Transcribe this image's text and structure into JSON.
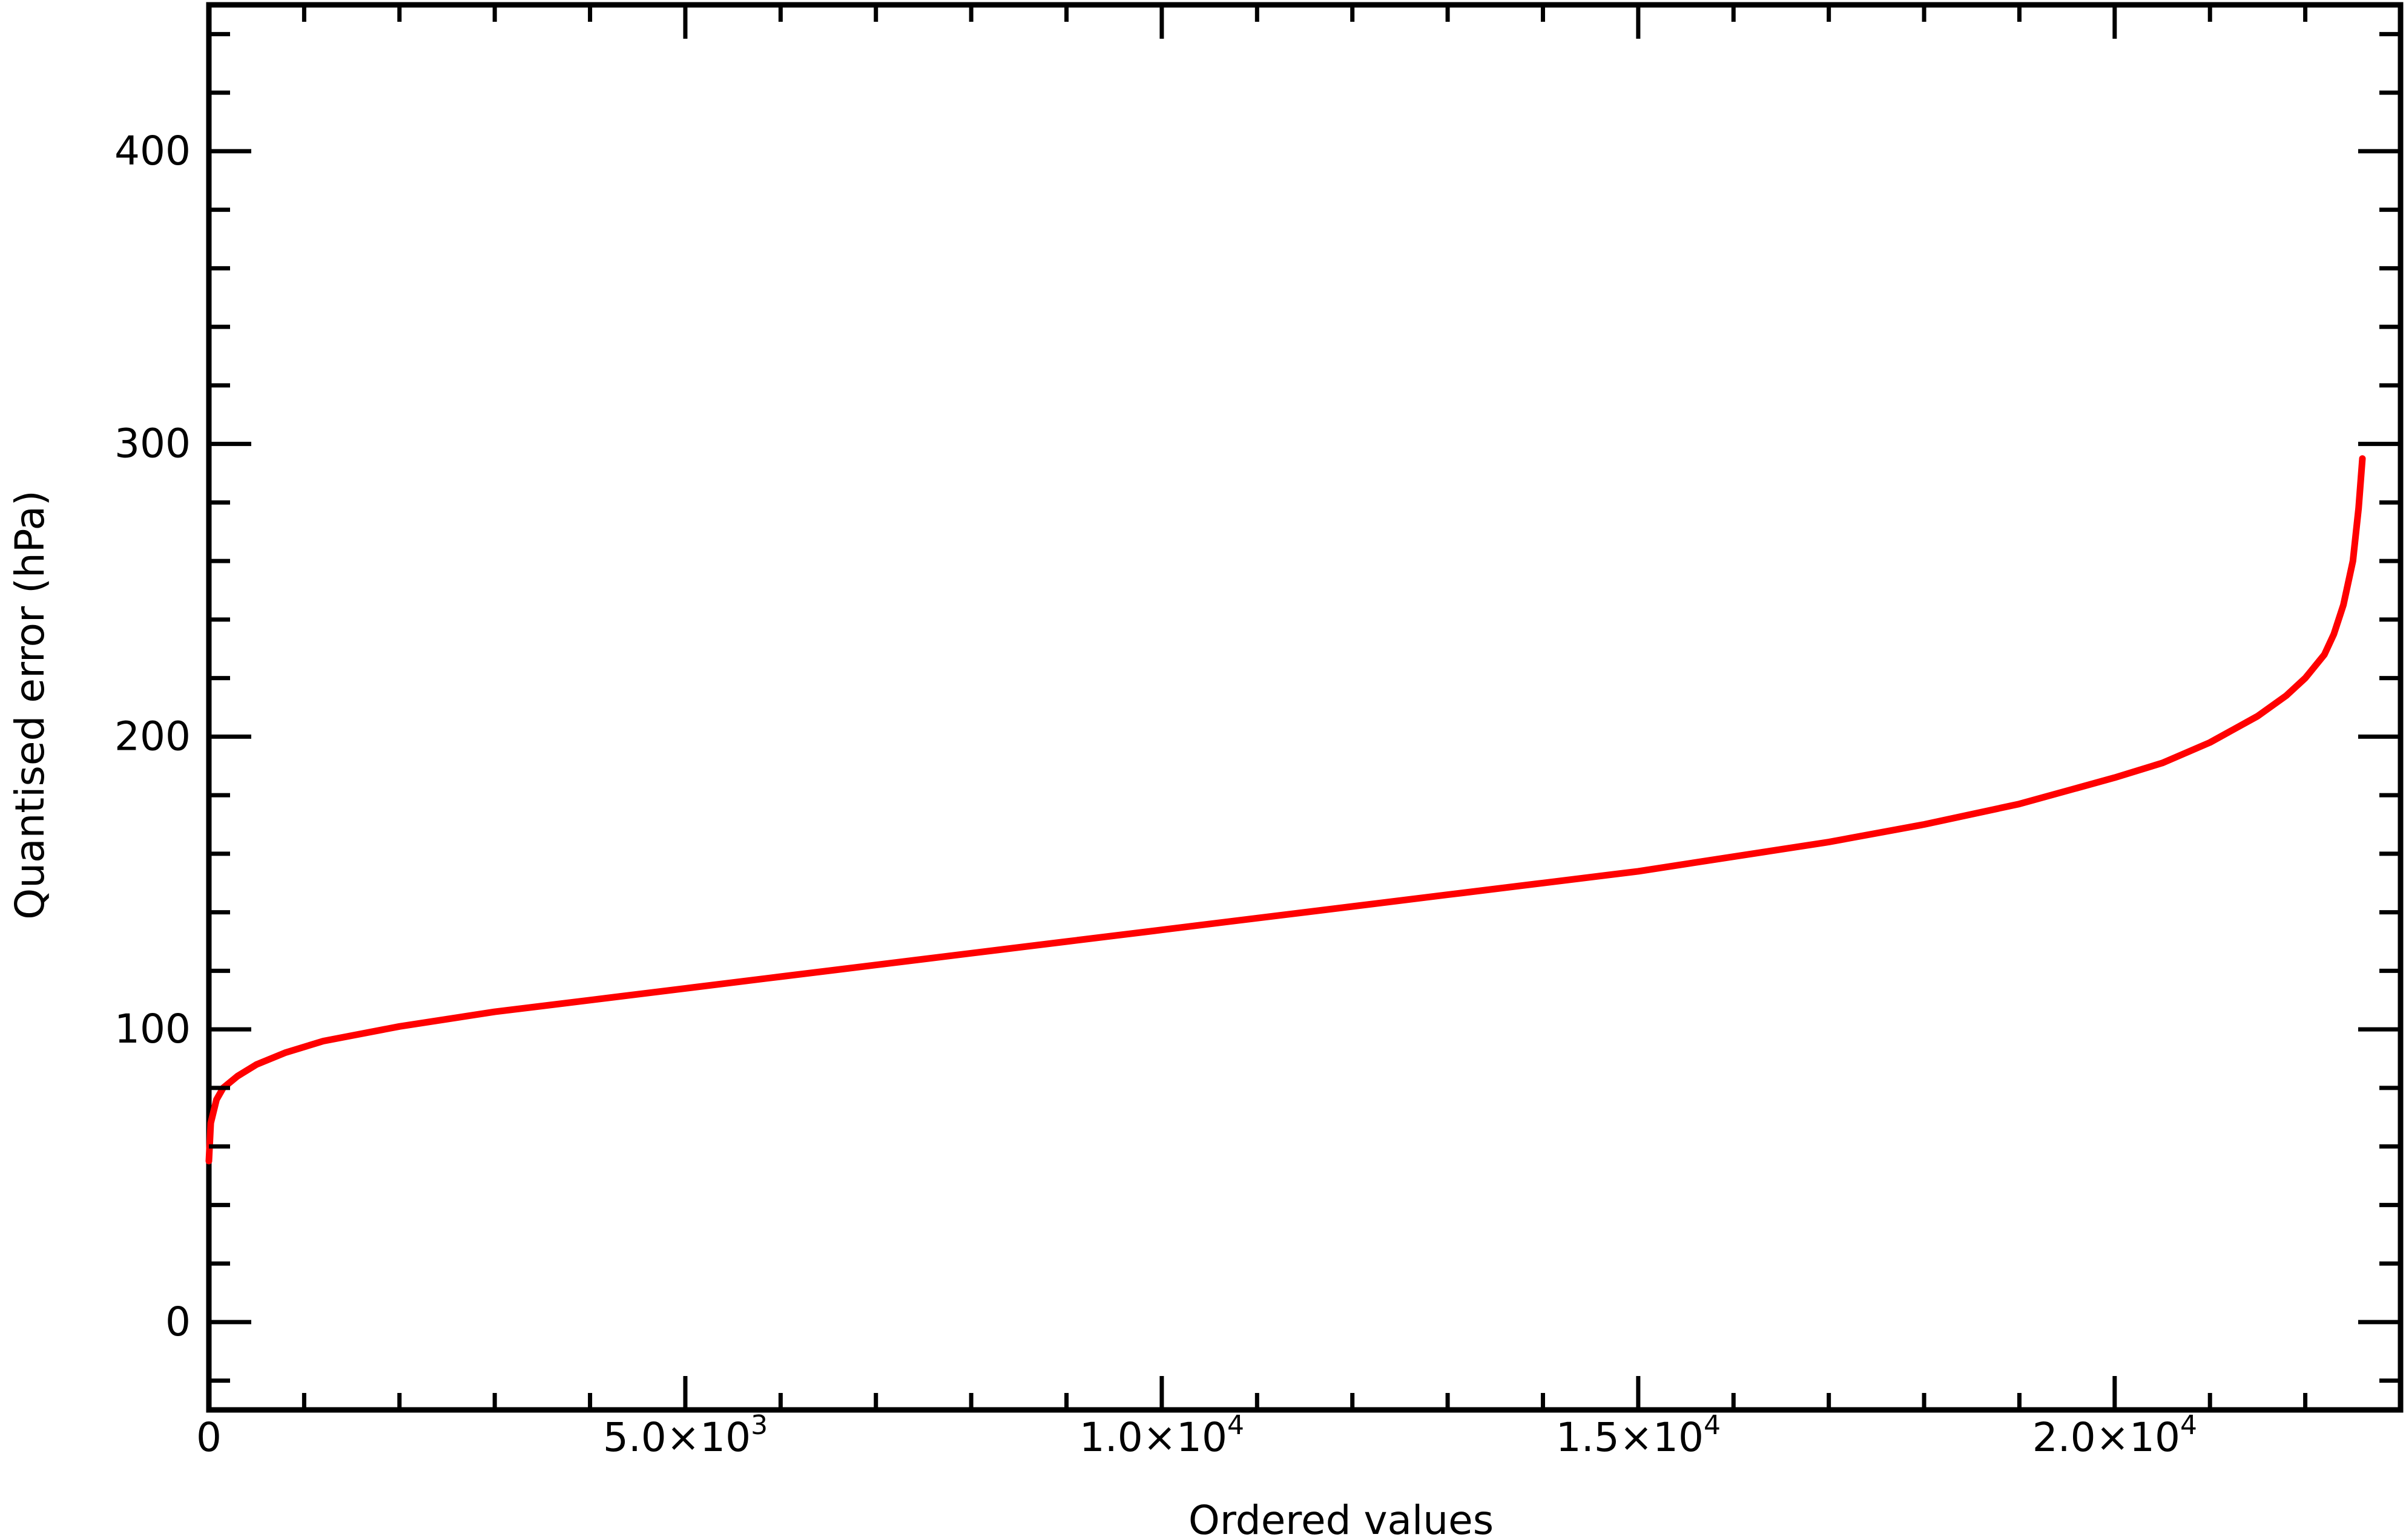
{
  "chart_data": {
    "type": "line",
    "title": "",
    "xlabel": "Ordered values",
    "ylabel": "Quantised error (hPa)",
    "xlim": [
      0,
      23000
    ],
    "ylim": [
      -30,
      450
    ],
    "x_ticks": [
      {
        "value": 0,
        "label": "0"
      },
      {
        "value": 5000,
        "label": "5.0×10",
        "exp": "3"
      },
      {
        "value": 10000,
        "label": "1.0×10",
        "exp": "4"
      },
      {
        "value": 15000,
        "label": "1.5×10",
        "exp": "4"
      },
      {
        "value": 20000,
        "label": "2.0×10",
        "exp": "4"
      }
    ],
    "x_minor_step": 1000,
    "y_ticks": [
      {
        "value": 0,
        "label": "0"
      },
      {
        "value": 100,
        "label": "100"
      },
      {
        "value": 200,
        "label": "200"
      },
      {
        "value": 300,
        "label": "300"
      },
      {
        "value": 400,
        "label": "400"
      }
    ],
    "y_minor_step": 20,
    "grid": false,
    "series": [
      {
        "color": "#ff0000",
        "x": [
          0,
          20,
          80,
          150,
          300,
          500,
          800,
          1200,
          2000,
          3000,
          4000,
          5000,
          6000,
          7000,
          8000,
          9000,
          10000,
          11000,
          12000,
          13000,
          14000,
          15000,
          16000,
          17000,
          18000,
          19000,
          20000,
          20500,
          21000,
          21500,
          21800,
          22000,
          22200,
          22300,
          22400,
          22500,
          22560,
          22600
        ],
        "y": [
          55,
          68,
          76,
          80,
          84,
          88,
          92,
          96,
          101,
          106,
          110,
          114,
          118,
          122,
          126,
          130,
          134,
          138,
          142,
          146,
          150,
          154,
          159,
          164,
          170,
          177,
          186,
          191,
          198,
          207,
          214,
          220,
          228,
          235,
          245,
          260,
          278,
          295
        ]
      }
    ]
  }
}
